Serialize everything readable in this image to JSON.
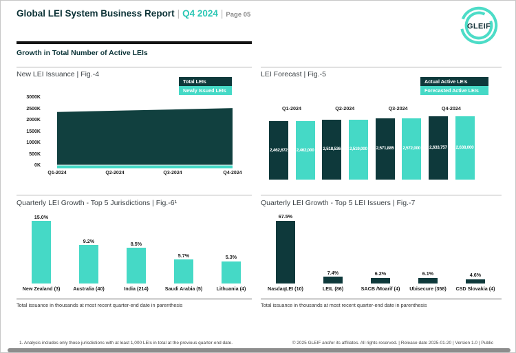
{
  "header": {
    "title": "Global LEI System Business Report",
    "separator": "|",
    "period": "Q4 2024",
    "page": "Page 05",
    "logo_text": "GLEIF"
  },
  "section_title": "Growth in Total Number of Active LEIs",
  "colors": {
    "dark_teal": "#0e393b",
    "area_dark": "#11403f",
    "teal": "#45d9c6",
    "header_teal": "#2cc7b5",
    "title_dark": "#0b3135"
  },
  "chart_data": [
    {
      "id": "fig4",
      "type": "area",
      "title": "New LEI Issuance | Fig.-4",
      "categories": [
        "Q1-2024",
        "Q2-2024",
        "Q3-2024",
        "Q4-2024"
      ],
      "series": [
        {
          "name": "Total LEIs",
          "color": "#11403f",
          "values": [
            2462672,
            2518536,
            2571885,
            2633757
          ]
        },
        {
          "name": "Newly Issued LEIs",
          "color": "#45d9c6",
          "values": [
            90000,
            90000,
            90000,
            90000
          ],
          "note": "thin strip at axis; in-area data labels not legible in source"
        }
      ],
      "yticks": [
        "3000K",
        "2500K",
        "2000K",
        "1500K",
        "1000K",
        "500K",
        "0K"
      ],
      "ylim_k": [
        0,
        3000
      ],
      "legend_position": "top-right",
      "grid": false
    },
    {
      "id": "fig5",
      "type": "bar",
      "title": "LEI Forecast | Fig.-5",
      "categories": [
        "Q1-2024",
        "Q2-2024",
        "Q3-2024",
        "Q4-2024"
      ],
      "series": [
        {
          "name": "Actual Active LEIs",
          "color": "#0e393b",
          "values": [
            2462672,
            2518536,
            2571885,
            2633757
          ],
          "labels": [
            "2,462,672",
            "2,518,536",
            "2,571,885",
            "2,633,757"
          ]
        },
        {
          "name": "Forecasted Active LEIs",
          "color": "#45d9c6",
          "values": [
            2462000,
            2519000,
            2572000,
            2638000
          ],
          "labels": [
            "2,462,000",
            "2,519,000",
            "2,572,000",
            "2,638,000"
          ]
        }
      ],
      "legend_position": "top-right",
      "bar_labels": "white, inside bars",
      "category_label_position": "above bars"
    },
    {
      "id": "fig6",
      "type": "bar",
      "title": "Quarterly LEI Growth - Top 5 Jurisdictions | Fig.-6¹",
      "categories": [
        "New Zealand (3)",
        "Australia (40)",
        "India (214)",
        "Saudi Arabia (5)",
        "Lithuania (4)"
      ],
      "values": [
        15.0,
        9.2,
        8.5,
        5.7,
        5.3
      ],
      "labels": [
        "15.0%",
        "9.2%",
        "8.5%",
        "5.7%",
        "5.3%"
      ],
      "bar_color": "#45d9c6",
      "note": "Total issuance in thousands at most recent quarter-end date in parenthesis"
    },
    {
      "id": "fig7",
      "type": "bar",
      "title": "Quarterly LEI Growth - Top 5 LEI Issuers | Fig.-7",
      "categories": [
        "NasdaqLEI (10)",
        "LEIL (86)",
        "SACB /Moarif (4)",
        "Ubisecure (358)",
        "CSD Slovakia (4)"
      ],
      "values": [
        67.5,
        7.4,
        6.2,
        6.1,
        4.6
      ],
      "labels": [
        "67.5%",
        "7.4%",
        "6.2%",
        "6.1%",
        "4.6%"
      ],
      "bar_color": "#0e393b",
      "note": "Total issuance in thousands at most recent quarter-end date in parenthesis"
    }
  ],
  "footer": {
    "footnote": "1. Analysis includes only those jurisdictions with at least 1,000 LEIs in total at the previous quarter-end date.",
    "copyright": "© 2025 GLEIF and/or its affiliates. All rights reserved.  |  Release date 2025-01-20  |  Version 1.0  |  Public"
  }
}
